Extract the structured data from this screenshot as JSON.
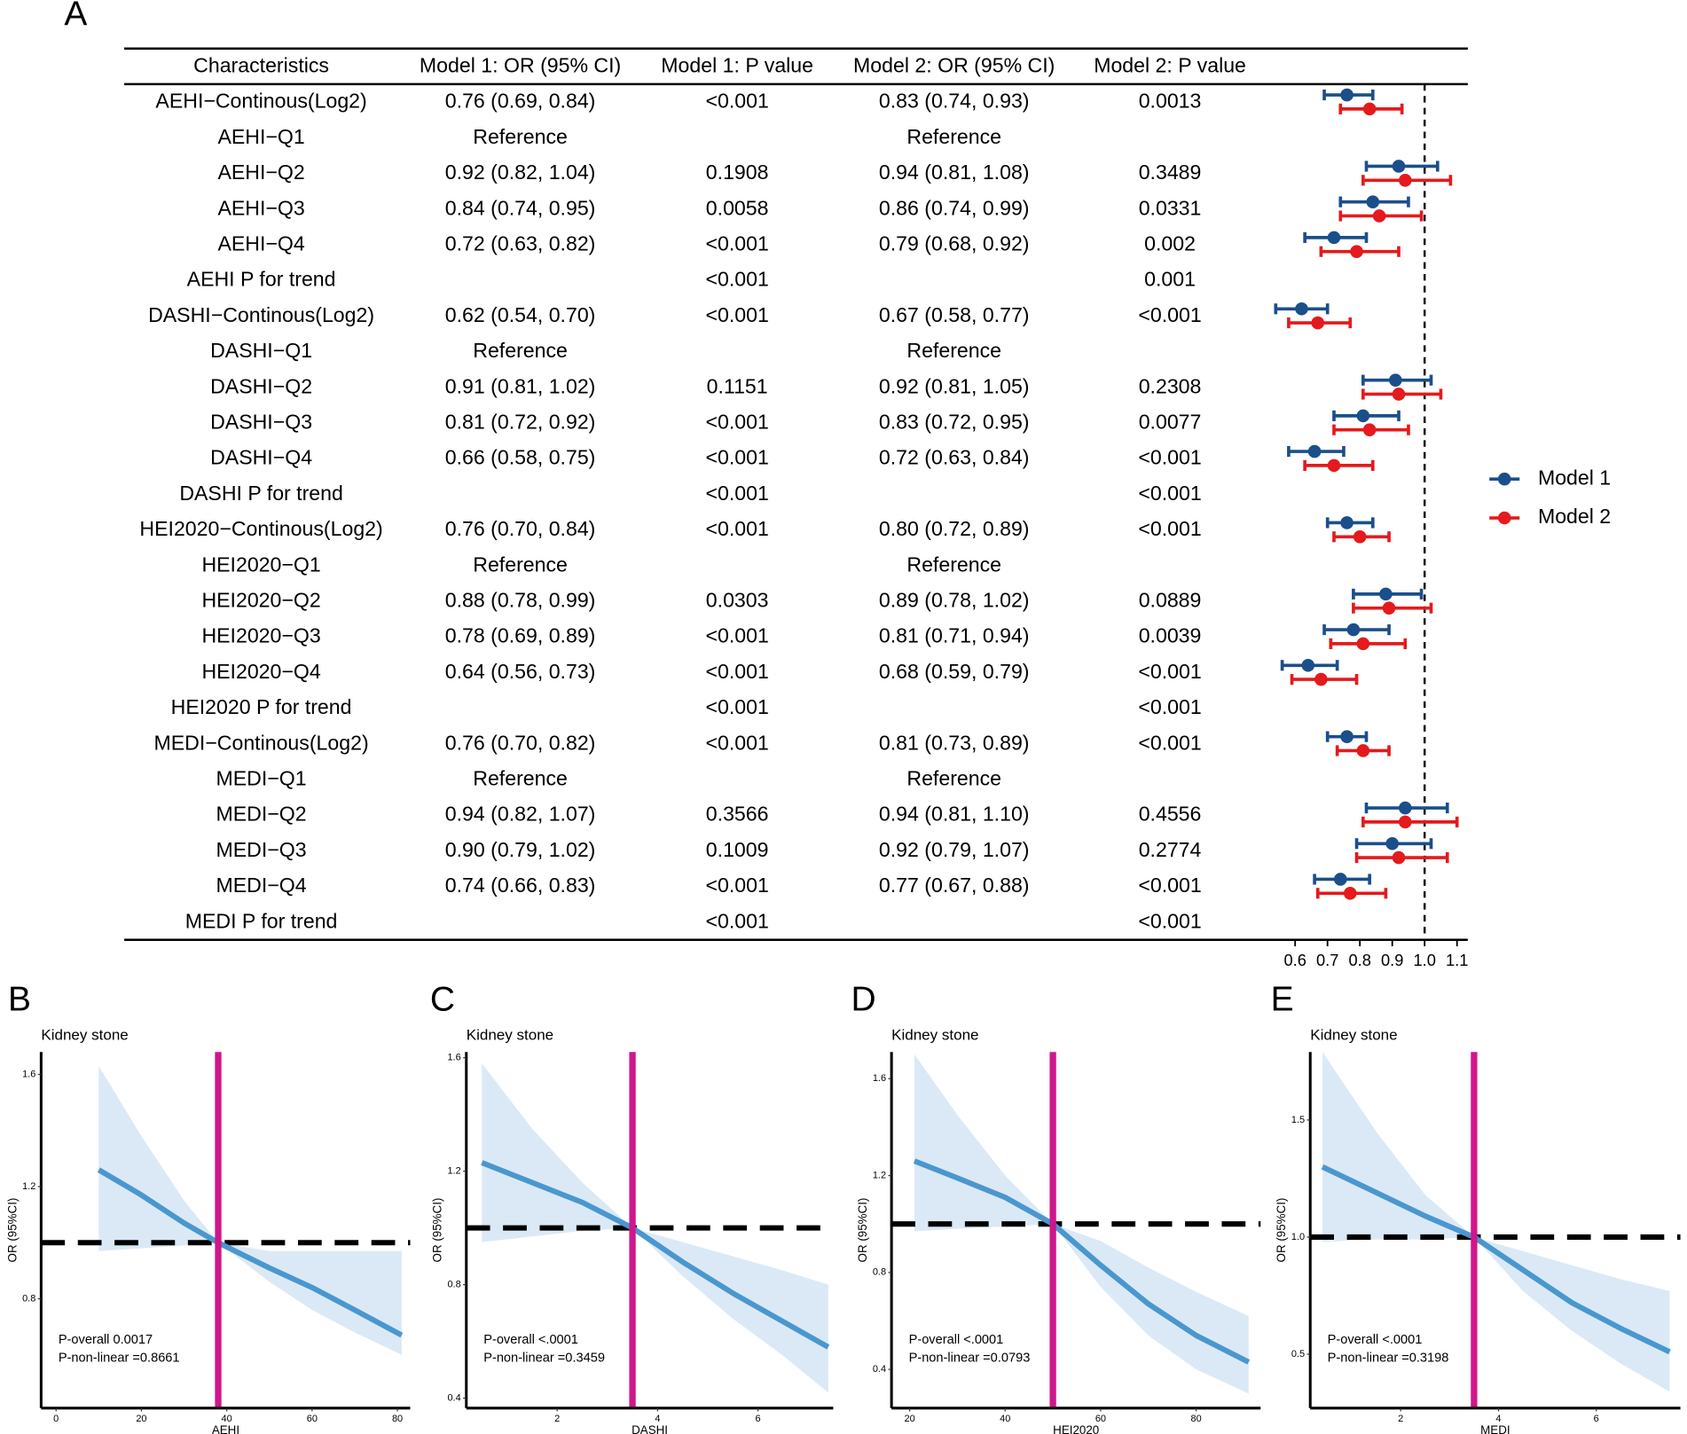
{
  "panel_labels": [
    "A",
    "B",
    "C",
    "D",
    "E"
  ],
  "chart_data": [
    {
      "type": "forest",
      "columns": [
        "Characteristics",
        "Model 1: OR (95% CI)",
        "Model 1: P value",
        "Model 2: OR (95% CI)",
        "Model 2: P value"
      ],
      "rows": [
        [
          "AEHI−Continous(Log2)",
          "0.76 (0.69, 0.84)",
          "<0.001",
          "0.83 (0.74, 0.93)",
          "0.0013"
        ],
        [
          "AEHI−Q1",
          "Reference",
          null,
          "Reference",
          null
        ],
        [
          "AEHI−Q2",
          "0.92 (0.82, 1.04)",
          "0.1908",
          "0.94 (0.81, 1.08)",
          "0.3489"
        ],
        [
          "AEHI−Q3",
          "0.84 (0.74, 0.95)",
          "0.0058",
          "0.86 (0.74, 0.99)",
          "0.0331"
        ],
        [
          "AEHI−Q4",
          "0.72 (0.63, 0.82)",
          "<0.001",
          "0.79 (0.68, 0.92)",
          "0.002"
        ],
        [
          "AEHI P for trend",
          null,
          "<0.001",
          null,
          "0.001"
        ],
        [
          "DASHI−Continous(Log2)",
          "0.62 (0.54, 0.70)",
          "<0.001",
          "0.67 (0.58, 0.77)",
          "<0.001"
        ],
        [
          "DASHI−Q1",
          "Reference",
          null,
          "Reference",
          null
        ],
        [
          "DASHI−Q2",
          "0.91 (0.81, 1.02)",
          "0.1151",
          "0.92 (0.81, 1.05)",
          "0.2308"
        ],
        [
          "DASHI−Q3",
          "0.81 (0.72, 0.92)",
          "<0.001",
          "0.83 (0.72, 0.95)",
          "0.0077"
        ],
        [
          "DASHI−Q4",
          "0.66 (0.58, 0.75)",
          "<0.001",
          "0.72 (0.63, 0.84)",
          "<0.001"
        ],
        [
          "DASHI P for trend",
          null,
          "<0.001",
          null,
          "<0.001"
        ],
        [
          "HEI2020−Continous(Log2)",
          "0.76 (0.70, 0.84)",
          "<0.001",
          "0.80 (0.72, 0.89)",
          "<0.001"
        ],
        [
          "HEI2020−Q1",
          "Reference",
          null,
          "Reference",
          null
        ],
        [
          "HEI2020−Q2",
          "0.88 (0.78, 0.99)",
          "0.0303",
          "0.89 (0.78, 1.02)",
          "0.0889"
        ],
        [
          "HEI2020−Q3",
          "0.78 (0.69, 0.89)",
          "<0.001",
          "0.81 (0.71, 0.94)",
          "0.0039"
        ],
        [
          "HEI2020−Q4",
          "0.64 (0.56, 0.73)",
          "<0.001",
          "0.68 (0.59, 0.79)",
          "<0.001"
        ],
        [
          "HEI2020 P for trend",
          null,
          "<0.001",
          null,
          "<0.001"
        ],
        [
          "MEDI−Continous(Log2)",
          "0.76 (0.70, 0.82)",
          "<0.001",
          "0.81 (0.73, 0.89)",
          "<0.001"
        ],
        [
          "MEDI−Q1",
          "Reference",
          null,
          "Reference",
          null
        ],
        [
          "MEDI−Q2",
          "0.94 (0.82, 1.07)",
          "0.3566",
          "0.94 (0.81, 1.10)",
          "0.4556"
        ],
        [
          "MEDI−Q3",
          "0.90 (0.79, 1.02)",
          "0.1009",
          "0.92 (0.79, 1.07)",
          "0.2774"
        ],
        [
          "MEDI−Q4",
          "0.74 (0.66, 0.83)",
          "<0.001",
          "0.77 (0.67, 0.88)",
          "<0.001"
        ],
        [
          "MEDI P for trend",
          null,
          "<0.001",
          null,
          "<0.001"
        ]
      ],
      "series": [
        {
          "name": "Model 1",
          "color": "#1a4f8b",
          "values": [
            0.76,
            null,
            0.92,
            0.84,
            0.72,
            null,
            0.62,
            null,
            0.91,
            0.81,
            0.66,
            null,
            0.76,
            null,
            0.88,
            0.78,
            0.64,
            null,
            0.76,
            null,
            0.94,
            0.9,
            0.74,
            null
          ],
          "lower": [
            0.69,
            null,
            0.82,
            0.74,
            0.63,
            null,
            0.54,
            null,
            0.81,
            0.72,
            0.58,
            null,
            0.7,
            null,
            0.78,
            0.69,
            0.56,
            null,
            0.7,
            null,
            0.82,
            0.79,
            0.66,
            null
          ],
          "upper": [
            0.84,
            null,
            1.04,
            0.95,
            0.82,
            null,
            0.7,
            null,
            1.02,
            0.92,
            0.75,
            null,
            0.84,
            null,
            0.99,
            0.89,
            0.73,
            null,
            0.82,
            null,
            1.07,
            1.02,
            0.83,
            null
          ]
        },
        {
          "name": "Model 2",
          "color": "#e41a1c",
          "values": [
            0.83,
            null,
            0.94,
            0.86,
            0.79,
            null,
            0.67,
            null,
            0.92,
            0.83,
            0.72,
            null,
            0.8,
            null,
            0.89,
            0.81,
            0.68,
            null,
            0.81,
            null,
            0.94,
            0.92,
            0.77,
            null
          ],
          "lower": [
            0.74,
            null,
            0.81,
            0.74,
            0.68,
            null,
            0.58,
            null,
            0.81,
            0.72,
            0.63,
            null,
            0.72,
            null,
            0.78,
            0.71,
            0.59,
            null,
            0.73,
            null,
            0.81,
            0.79,
            0.67,
            null
          ],
          "upper": [
            0.93,
            null,
            1.08,
            0.99,
            0.92,
            null,
            0.77,
            null,
            1.05,
            0.95,
            0.84,
            null,
            0.89,
            null,
            1.02,
            0.94,
            0.79,
            null,
            0.89,
            null,
            1.1,
            1.07,
            0.88,
            null
          ]
        }
      ],
      "xlim": [
        0.52,
        1.12
      ],
      "xticks": [
        0.6,
        0.7,
        0.8,
        0.9,
        {
          "value": 1,
          "label": "1.0"
        },
        1.1
      ],
      "reference_line": 1,
      "legend": "right"
    },
    {
      "type": "spline",
      "subtitle": "Kidney stone",
      "xlabel": "AEHI",
      "ylabel": "OR (95%CI)",
      "annotations": [
        "P-overall 0.0017",
        "P-non-linear =0.8661"
      ],
      "x": [
        10,
        20,
        30,
        38,
        50,
        60,
        70,
        81
      ],
      "values": [
        1.26,
        1.17,
        1.07,
        1.0,
        0.91,
        0.84,
        0.76,
        0.67
      ],
      "lower": [
        0.97,
        0.98,
        0.99,
        1.0,
        0.86,
        0.76,
        0.68,
        0.6
      ],
      "upper": [
        1.63,
        1.38,
        1.15,
        1.0,
        0.97,
        0.97,
        0.97,
        0.97
      ],
      "color": "#4a97cf",
      "band_color": "#cfe2f3",
      "xlim": [
        -3.5,
        83
      ],
      "ylim": [
        0.41,
        1.68
      ],
      "xticks": [
        0,
        20,
        40,
        60,
        80
      ],
      "yticks": [
        0.8,
        1.2,
        1.6
      ],
      "reference_line": 1,
      "cutpoint": 38,
      "cutpoint_color": "#d0168c"
    },
    {
      "type": "spline",
      "subtitle": "Kidney stone",
      "xlabel": "DASHI",
      "ylabel": "OR (95%CI)",
      "annotations": [
        "P-overall <.0001",
        "P-non-linear =0.3459"
      ],
      "x": [
        0.5,
        1.5,
        2.5,
        3.5,
        4.5,
        5.5,
        6.5,
        7.4
      ],
      "values": [
        1.23,
        1.16,
        1.09,
        1.0,
        0.88,
        0.77,
        0.67,
        0.58
      ],
      "lower": [
        0.95,
        0.97,
        0.99,
        1.0,
        0.83,
        0.68,
        0.55,
        0.42
      ],
      "upper": [
        1.58,
        1.35,
        1.16,
        1.0,
        0.95,
        0.9,
        0.85,
        0.8
      ],
      "color": "#4a97cf",
      "band_color": "#cfe2f3",
      "xlim": [
        0.19,
        7.5
      ],
      "ylim": [
        0.365,
        1.62
      ],
      "xticks": [
        2,
        4,
        6
      ],
      "yticks": [
        0.4,
        0.8,
        1.2,
        1.6
      ],
      "reference_line": 1,
      "cutpoint": 3.5,
      "cutpoint_color": "#d0168c"
    },
    {
      "type": "spline",
      "subtitle": "Kidney stone",
      "xlabel": "HEI2020",
      "ylabel": "OR (95%CI)",
      "annotations": [
        "P-overall <.0001",
        "P-non-linear =0.0793"
      ],
      "x": [
        21,
        30,
        40,
        50,
        60,
        70,
        80,
        91
      ],
      "values": [
        1.26,
        1.19,
        1.11,
        1.0,
        0.83,
        0.67,
        0.54,
        0.43
      ],
      "lower": [
        0.97,
        0.98,
        0.99,
        1.0,
        0.74,
        0.54,
        0.4,
        0.3
      ],
      "upper": [
        1.7,
        1.45,
        1.2,
        1.0,
        0.93,
        0.82,
        0.72,
        0.62
      ],
      "color": "#4a97cf",
      "band_color": "#cfe2f3",
      "xlim": [
        16.2,
        93.5
      ],
      "ylim": [
        0.24,
        1.71
      ],
      "xticks": [
        20,
        40,
        60,
        80
      ],
      "yticks": [
        0.4,
        0.8,
        1.2,
        1.6
      ],
      "reference_line": 1,
      "cutpoint": 50,
      "cutpoint_color": "#d0168c"
    },
    {
      "type": "spline",
      "subtitle": "Kidney stone",
      "xlabel": "MEDI",
      "ylabel": "OR (95%CI)",
      "annotations": [
        "P-overall <.0001",
        "P-non-linear =0.3198"
      ],
      "x": [
        0.4,
        1.5,
        2.5,
        3.5,
        4.5,
        5.5,
        6.5,
        7.5
      ],
      "values": [
        1.3,
        1.19,
        1.09,
        1.0,
        0.86,
        0.72,
        0.61,
        0.51
      ],
      "lower": [
        0.98,
        0.99,
        0.99,
        1.0,
        0.77,
        0.6,
        0.46,
        0.34
      ],
      "upper": [
        1.79,
        1.45,
        1.18,
        1.0,
        0.94,
        0.88,
        0.82,
        0.77
      ],
      "color": "#4a97cf",
      "band_color": "#cfe2f3",
      "xlim": [
        0.15,
        7.72
      ],
      "ylim": [
        0.27,
        1.79
      ],
      "xticks": [
        2,
        4,
        6
      ],
      "yticks": [
        0.5,
        {
          "value": 1,
          "label": "1.0"
        },
        1.5
      ],
      "reference_line": 1,
      "cutpoint": 3.5,
      "cutpoint_color": "#d0168c"
    }
  ]
}
